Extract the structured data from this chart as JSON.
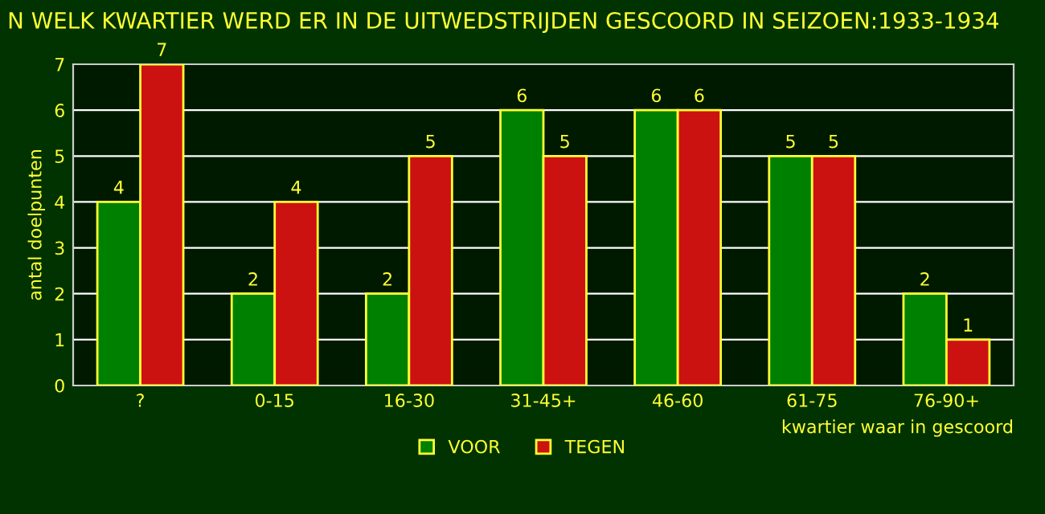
{
  "chart_data": {
    "type": "bar",
    "title": "N WELK KWARTIER WERD ER IN DE UITWEDSTRIJDEN GESCOORD IN SEIZOEN:1933-1934",
    "xlabel": "kwartier waar in gescoord",
    "ylabel": "antal doelpunten",
    "categories": [
      "?",
      "0-15",
      "16-30",
      "31-45+",
      "46-60",
      "61-75",
      "76-90+"
    ],
    "series": [
      {
        "name": "VOOR",
        "color": "#008000",
        "values": [
          4,
          2,
          2,
          6,
          6,
          5,
          2
        ]
      },
      {
        "name": "TEGEN",
        "color": "#cc1111",
        "values": [
          7,
          4,
          5,
          5,
          6,
          5,
          1
        ]
      }
    ],
    "ylim": [
      0,
      7
    ],
    "yticks": [
      0,
      1,
      2,
      3,
      4,
      5,
      6,
      7
    ],
    "grid": "y",
    "legend": "bottom",
    "data_labels": true
  }
}
